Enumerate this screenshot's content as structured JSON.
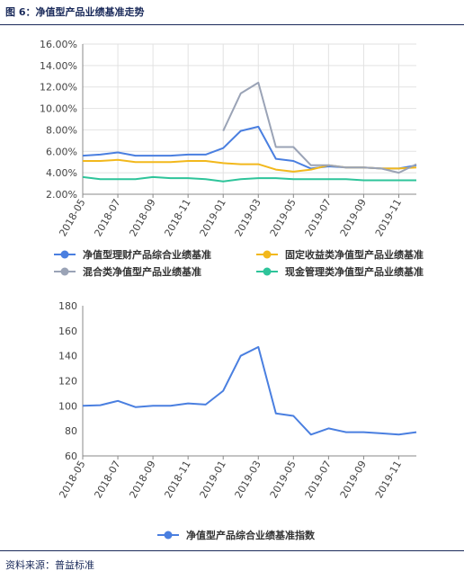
{
  "figure": {
    "title": "图 6：净值型产品业绩基准走势",
    "source": "资料来源：普益标准"
  },
  "chart_data": [
    {
      "type": "line",
      "x": [
        "2018-05",
        "2018-06",
        "2018-07",
        "2018-08",
        "2018-09",
        "2018-10",
        "2018-11",
        "2018-12",
        "2019-01",
        "2019-02",
        "2019-03",
        "2019-04",
        "2019-05",
        "2019-06",
        "2019-07",
        "2019-08",
        "2019-09",
        "2019-10",
        "2019-11",
        "2019-12"
      ],
      "xticks": [
        "2018-05",
        "2018-07",
        "2018-09",
        "2018-11",
        "2019-01",
        "2019-03",
        "2019-05",
        "2019-07",
        "2019-09",
        "2019-11"
      ],
      "ylim": [
        0.02,
        0.16
      ],
      "yticks": [
        "2.00%",
        "4.00%",
        "6.00%",
        "8.00%",
        "10.00%",
        "12.00%",
        "14.00%",
        "16.00%"
      ],
      "grid": true,
      "legend_position": "bottom",
      "series": [
        {
          "name": "净值型理财产品综合业绩基准",
          "color": "#4a7fe0",
          "values": [
            0.056,
            0.057,
            0.059,
            0.056,
            0.056,
            0.056,
            0.057,
            0.057,
            0.063,
            0.079,
            0.083,
            0.053,
            0.051,
            0.044,
            0.046,
            0.045,
            0.045,
            0.044,
            0.044,
            0.047
          ]
        },
        {
          "name": "固定收益类净值型产品业绩基准",
          "color": "#f2b81c",
          "values": [
            0.051,
            0.051,
            0.052,
            0.05,
            0.05,
            0.05,
            0.051,
            0.051,
            0.049,
            0.048,
            0.048,
            0.043,
            0.041,
            0.043,
            0.047,
            0.045,
            0.045,
            0.044,
            0.044,
            0.045
          ]
        },
        {
          "name": "混合类净值型产品业绩基准",
          "color": "#9aa3b6",
          "values": [
            null,
            null,
            null,
            null,
            null,
            null,
            null,
            null,
            0.079,
            0.114,
            0.124,
            0.064,
            0.064,
            0.047,
            0.047,
            0.045,
            0.045,
            0.044,
            0.04,
            0.048
          ]
        },
        {
          "name": "现金管理类净值型产品业绩基准",
          "color": "#2ec49a",
          "values": [
            0.036,
            0.034,
            0.034,
            0.034,
            0.036,
            0.035,
            0.035,
            0.034,
            0.032,
            0.034,
            0.035,
            0.035,
            0.034,
            0.034,
            0.034,
            0.034,
            0.033,
            0.033,
            0.033,
            0.033
          ]
        }
      ]
    },
    {
      "type": "line",
      "x": [
        "2018-05",
        "2018-06",
        "2018-07",
        "2018-08",
        "2018-09",
        "2018-10",
        "2018-11",
        "2018-12",
        "2019-01",
        "2019-02",
        "2019-03",
        "2019-04",
        "2019-05",
        "2019-06",
        "2019-07",
        "2019-08",
        "2019-09",
        "2019-10",
        "2019-11",
        "2019-12"
      ],
      "xticks": [
        "2018-05",
        "2018-07",
        "2018-09",
        "2018-11",
        "2019-01",
        "2019-03",
        "2019-05",
        "2019-07",
        "2019-09",
        "2019-11"
      ],
      "ylim": [
        60,
        180
      ],
      "yticks": [
        "60",
        "80",
        "100",
        "120",
        "140",
        "160",
        "180"
      ],
      "grid": false,
      "legend_position": "bottom",
      "series": [
        {
          "name": "净值型产品综合业绩基准指数",
          "color": "#4a7fe0",
          "values": [
            100,
            100.5,
            104,
            99,
            100,
            100,
            102,
            101,
            112,
            140,
            147,
            94,
            92,
            77,
            82,
            79,
            79,
            78,
            77,
            79
          ]
        }
      ]
    }
  ]
}
